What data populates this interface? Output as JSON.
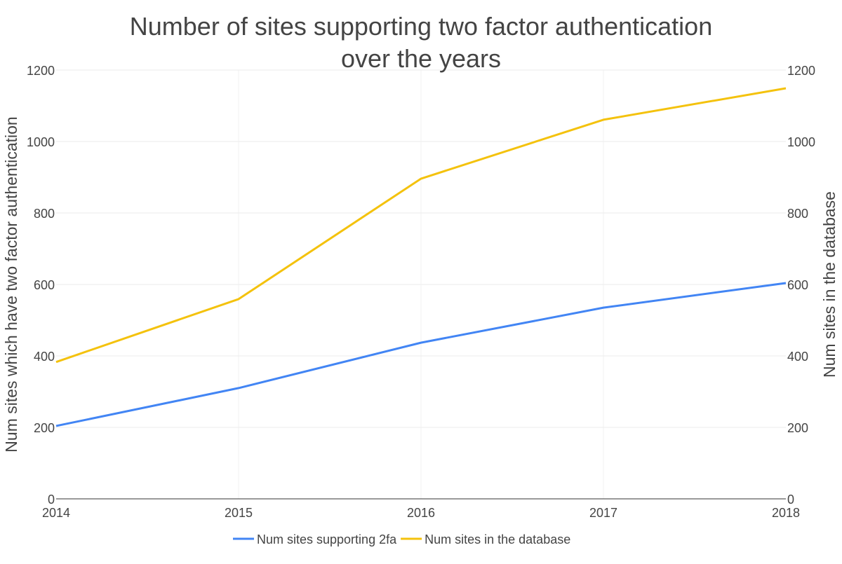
{
  "chart_data": {
    "type": "line",
    "title": [
      "Number of sites supporting two factor authentication",
      "over the years"
    ],
    "ylabel_left": "Num sites which have two factor authentication",
    "ylabel_right": "Num sites in the database",
    "x": [
      "2014",
      "2015",
      "2016",
      "2017",
      "2018"
    ],
    "ylim_left": [
      0,
      1200
    ],
    "ylim_right": [
      0,
      1200
    ],
    "yticks": [
      "0",
      "200",
      "400",
      "600",
      "800",
      "1000",
      "1200"
    ],
    "grid": true,
    "legend_position": "bottom",
    "series": [
      {
        "name": "Num sites supporting 2fa",
        "axis": "left",
        "color": "#4285f4",
        "values": [
          204,
          310,
          437,
          535,
          604
        ]
      },
      {
        "name": "Num sites in the database",
        "axis": "right",
        "color": "#f4c20d",
        "values": [
          383,
          559,
          896,
          1061,
          1149
        ]
      }
    ]
  }
}
